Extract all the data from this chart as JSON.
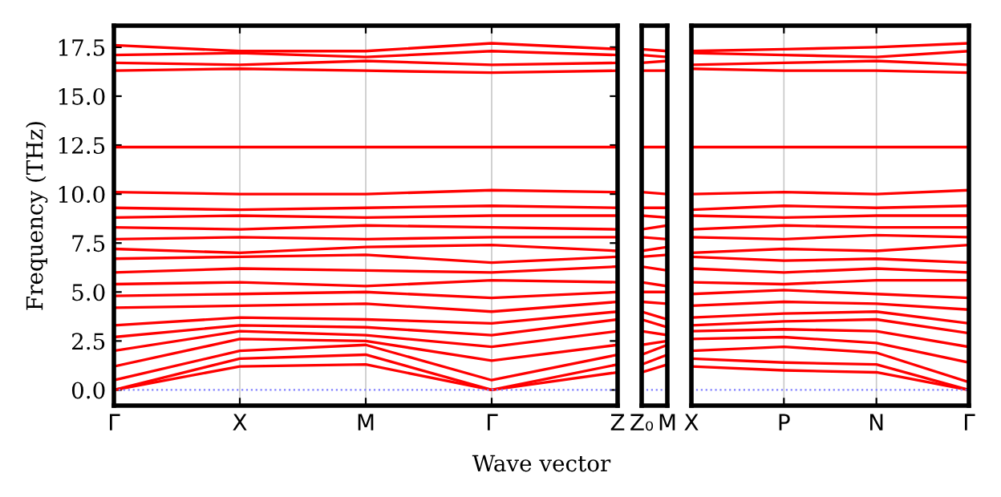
{
  "chart_data": [
    {
      "type": "line",
      "xlabel": "Wave vector",
      "ylabel": "Frequency (THz)",
      "categories": [
        "Γ",
        "X",
        "M",
        "Γ",
        "Z"
      ],
      "ylim": [
        -0.8,
        18.6
      ],
      "yticks": [
        {
          "value": 0,
          "label": "0.0"
        },
        {
          "value": 2.5,
          "label": "2.5"
        },
        {
          "value": 5,
          "label": "5.0"
        },
        {
          "value": 7.5,
          "label": "7.5"
        },
        {
          "value": 10,
          "label": "10.0"
        },
        {
          "value": 12.5,
          "label": "12.5"
        },
        {
          "value": 15,
          "label": "15.0"
        },
        {
          "value": 17.5,
          "label": "17.5"
        }
      ],
      "ref_lines": [
        {
          "axis": "y",
          "value": 0,
          "color": "#8080ff",
          "line_style": "dotted"
        }
      ],
      "legend": false,
      "grid": "x",
      "marker": "none",
      "line_style": "solid",
      "series": [
        {
          "color": "#ff0000",
          "values": [
            0,
            1.2,
            1.3,
            0,
            0.9
          ]
        },
        {
          "color": "#ff0000",
          "values": [
            0,
            1.6,
            1.8,
            0,
            1.3
          ]
        },
        {
          "color": "#ff0000",
          "values": [
            0.5,
            2.0,
            2.3,
            0.5,
            1.8
          ]
        },
        {
          "color": "#ff0000",
          "values": [
            1.2,
            2.6,
            2.5,
            1.5,
            2.3
          ]
        },
        {
          "color": "#ff0000",
          "values": [
            2.0,
            3.0,
            2.8,
            2.2,
            3.0
          ]
        },
        {
          "color": "#ff0000",
          "values": [
            2.7,
            3.3,
            3.2,
            2.8,
            3.6
          ]
        },
        {
          "color": "#ff0000",
          "values": [
            3.3,
            3.7,
            3.6,
            3.4,
            4.0
          ]
        },
        {
          "color": "#ff0000",
          "values": [
            4.2,
            4.3,
            4.4,
            4.0,
            4.5
          ]
        },
        {
          "color": "#ff0000",
          "values": [
            4.8,
            4.9,
            5.0,
            4.7,
            5.0
          ]
        },
        {
          "color": "#ff0000",
          "values": [
            5.4,
            5.5,
            5.3,
            5.6,
            5.5
          ]
        },
        {
          "color": "#ff0000",
          "values": [
            6.0,
            6.2,
            6.1,
            6.0,
            6.3
          ]
        },
        {
          "color": "#ff0000",
          "values": [
            6.7,
            6.8,
            6.9,
            6.5,
            6.8
          ]
        },
        {
          "color": "#ff0000",
          "values": [
            7.2,
            7.0,
            7.3,
            7.4,
            7.1
          ]
        },
        {
          "color": "#ff0000",
          "values": [
            7.7,
            7.8,
            7.7,
            7.8,
            7.8
          ]
        },
        {
          "color": "#ff0000",
          "values": [
            8.3,
            8.2,
            8.4,
            8.3,
            8.2
          ]
        },
        {
          "color": "#ff0000",
          "values": [
            8.8,
            8.9,
            8.8,
            8.9,
            8.9
          ]
        },
        {
          "color": "#ff0000",
          "values": [
            9.3,
            9.2,
            9.3,
            9.4,
            9.3
          ]
        },
        {
          "color": "#ff0000",
          "values": [
            10.1,
            10.0,
            10.0,
            10.2,
            10.1
          ]
        },
        {
          "color": "#ff0000",
          "values": [
            12.4,
            12.4,
            12.4,
            12.4,
            12.4
          ]
        },
        {
          "color": "#ff0000",
          "values": [
            16.3,
            16.4,
            16.3,
            16.2,
            16.3
          ]
        },
        {
          "color": "#ff0000",
          "values": [
            16.7,
            16.6,
            16.8,
            16.6,
            16.7
          ]
        },
        {
          "color": "#ff0000",
          "values": [
            17.1,
            17.2,
            17.0,
            17.3,
            17.1
          ]
        },
        {
          "color": "#ff0000",
          "values": [
            17.6,
            17.3,
            17.3,
            17.7,
            17.4
          ]
        }
      ]
    },
    {
      "type": "line",
      "categories": [
        "Z₀",
        "M"
      ],
      "ylim": [
        -0.8,
        18.6
      ],
      "tick_labels": "x",
      "ref_lines": [
        {
          "axis": "y",
          "value": 0,
          "color": "#8080ff",
          "line_style": "dotted"
        }
      ],
      "legend": false,
      "grid": "x",
      "marker": "none",
      "line_style": "solid",
      "series": [
        {
          "color": "#ff0000",
          "values": [
            0.9,
            1.3
          ]
        },
        {
          "color": "#ff0000",
          "values": [
            1.3,
            1.8
          ]
        },
        {
          "color": "#ff0000",
          "values": [
            1.8,
            2.3
          ]
        },
        {
          "color": "#ff0000",
          "values": [
            2.3,
            2.5
          ]
        },
        {
          "color": "#ff0000",
          "values": [
            3.0,
            2.8
          ]
        },
        {
          "color": "#ff0000",
          "values": [
            3.6,
            3.2
          ]
        },
        {
          "color": "#ff0000",
          "values": [
            4.0,
            3.6
          ]
        },
        {
          "color": "#ff0000",
          "values": [
            4.5,
            4.4
          ]
        },
        {
          "color": "#ff0000",
          "values": [
            5.0,
            5.0
          ]
        },
        {
          "color": "#ff0000",
          "values": [
            5.5,
            5.3
          ]
        },
        {
          "color": "#ff0000",
          "values": [
            6.3,
            6.1
          ]
        },
        {
          "color": "#ff0000",
          "values": [
            6.8,
            6.9
          ]
        },
        {
          "color": "#ff0000",
          "values": [
            7.1,
            7.3
          ]
        },
        {
          "color": "#ff0000",
          "values": [
            7.8,
            7.7
          ]
        },
        {
          "color": "#ff0000",
          "values": [
            8.2,
            8.4
          ]
        },
        {
          "color": "#ff0000",
          "values": [
            8.9,
            8.8
          ]
        },
        {
          "color": "#ff0000",
          "values": [
            9.3,
            9.3
          ]
        },
        {
          "color": "#ff0000",
          "values": [
            10.1,
            10.0
          ]
        },
        {
          "color": "#ff0000",
          "values": [
            12.4,
            12.4
          ]
        },
        {
          "color": "#ff0000",
          "values": [
            16.3,
            16.3
          ]
        },
        {
          "color": "#ff0000",
          "values": [
            16.7,
            16.8
          ]
        },
        {
          "color": "#ff0000",
          "values": [
            17.1,
            17.0
          ]
        },
        {
          "color": "#ff0000",
          "values": [
            17.4,
            17.3
          ]
        }
      ]
    },
    {
      "type": "line",
      "categories": [
        "X",
        "P",
        "N",
        "Γ"
      ],
      "ylim": [
        -0.8,
        18.6
      ],
      "tick_labels": "x",
      "ref_lines": [
        {
          "axis": "y",
          "value": 0,
          "color": "#8080ff",
          "line_style": "dotted"
        }
      ],
      "legend": false,
      "grid": "x",
      "marker": "none",
      "line_style": "solid",
      "series": [
        {
          "color": "#ff0000",
          "values": [
            1.2,
            1.0,
            0.9,
            0
          ]
        },
        {
          "color": "#ff0000",
          "values": [
            1.6,
            1.4,
            1.3,
            0
          ]
        },
        {
          "color": "#ff0000",
          "values": [
            2.0,
            2.2,
            1.9,
            0.4
          ]
        },
        {
          "color": "#ff0000",
          "values": [
            2.6,
            2.7,
            2.4,
            1.4
          ]
        },
        {
          "color": "#ff0000",
          "values": [
            3.0,
            3.1,
            3.0,
            2.2
          ]
        },
        {
          "color": "#ff0000",
          "values": [
            3.3,
            3.5,
            3.6,
            2.9
          ]
        },
        {
          "color": "#ff0000",
          "values": [
            3.7,
            3.9,
            4.0,
            3.4
          ]
        },
        {
          "color": "#ff0000",
          "values": [
            4.3,
            4.5,
            4.4,
            4.1
          ]
        },
        {
          "color": "#ff0000",
          "values": [
            4.9,
            5.1,
            4.9,
            4.7
          ]
        },
        {
          "color": "#ff0000",
          "values": [
            5.5,
            5.4,
            5.6,
            5.6
          ]
        },
        {
          "color": "#ff0000",
          "values": [
            6.2,
            6.0,
            6.2,
            6.0
          ]
        },
        {
          "color": "#ff0000",
          "values": [
            6.8,
            6.6,
            6.7,
            6.5
          ]
        },
        {
          "color": "#ff0000",
          "values": [
            7.0,
            7.2,
            7.1,
            7.4
          ]
        },
        {
          "color": "#ff0000",
          "values": [
            7.8,
            7.7,
            7.9,
            7.8
          ]
        },
        {
          "color": "#ff0000",
          "values": [
            8.2,
            8.4,
            8.3,
            8.3
          ]
        },
        {
          "color": "#ff0000",
          "values": [
            8.9,
            8.8,
            8.9,
            8.9
          ]
        },
        {
          "color": "#ff0000",
          "values": [
            9.2,
            9.4,
            9.3,
            9.4
          ]
        },
        {
          "color": "#ff0000",
          "values": [
            10.0,
            10.1,
            10.0,
            10.2
          ]
        },
        {
          "color": "#ff0000",
          "values": [
            12.4,
            12.4,
            12.4,
            12.4
          ]
        },
        {
          "color": "#ff0000",
          "values": [
            16.4,
            16.3,
            16.3,
            16.2
          ]
        },
        {
          "color": "#ff0000",
          "values": [
            16.6,
            16.7,
            16.8,
            16.6
          ]
        },
        {
          "color": "#ff0000",
          "values": [
            17.2,
            17.1,
            17.0,
            17.3
          ]
        },
        {
          "color": "#ff0000",
          "values": [
            17.3,
            17.4,
            17.5,
            17.7
          ]
        }
      ]
    }
  ]
}
